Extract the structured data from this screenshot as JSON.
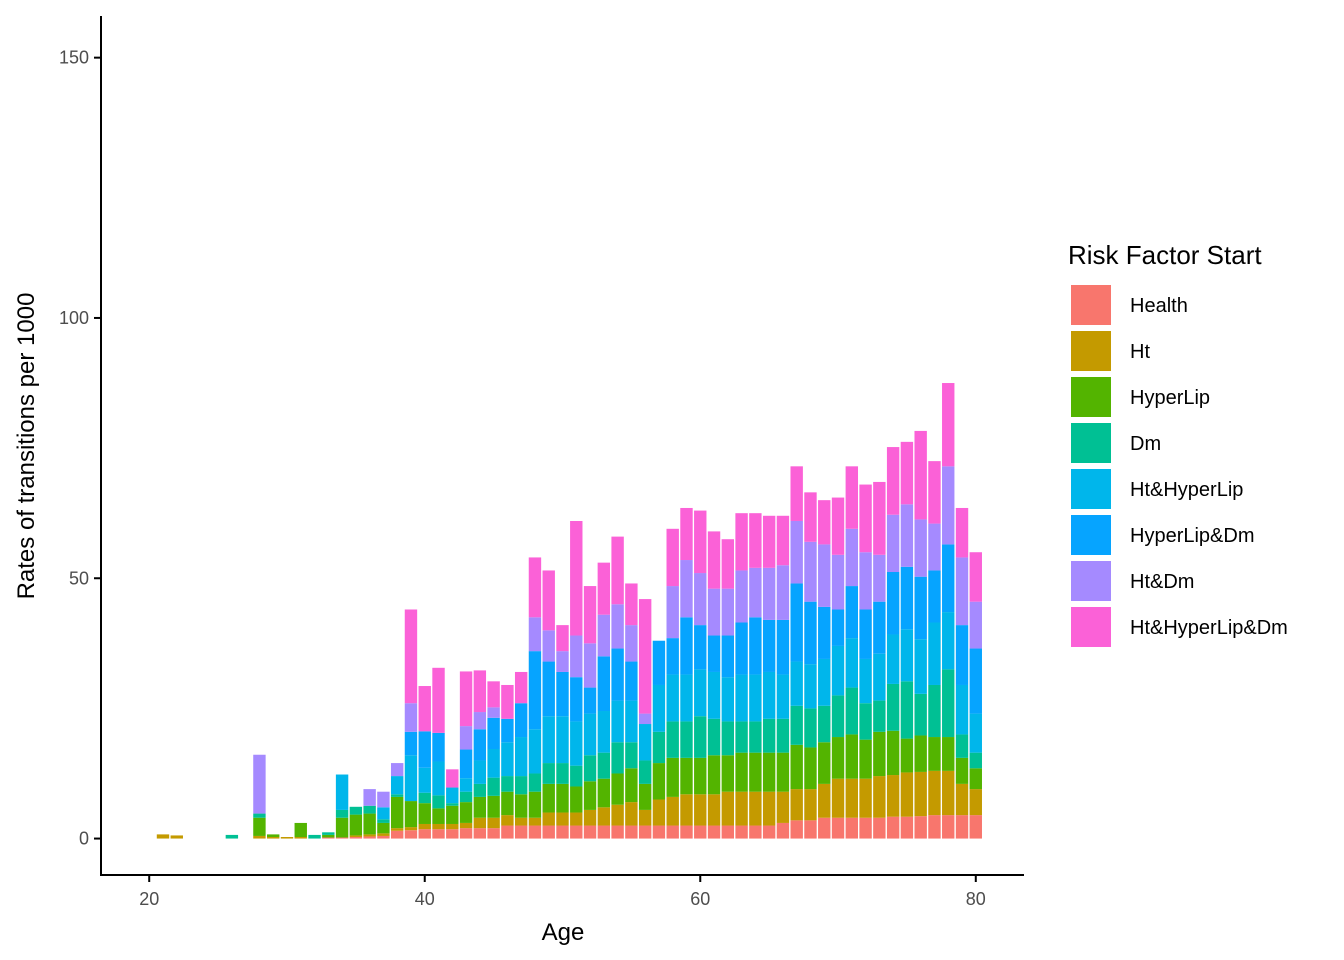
{
  "chart_data": {
    "type": "bar",
    "stacked": true,
    "xlabel": "Age",
    "ylabel": "Rates of transitions per 1000",
    "xlim": [
      16.5,
      83.5
    ],
    "ylim": [
      -7,
      158
    ],
    "xticks": [
      20,
      40,
      60,
      80
    ],
    "yticks": [
      0,
      50,
      100,
      150
    ],
    "grid": false,
    "legend": {
      "title": "Risk Factor Start",
      "position": "right"
    },
    "ages": [
      20,
      21,
      22,
      23,
      24,
      25,
      26,
      27,
      28,
      29,
      30,
      31,
      32,
      33,
      34,
      35,
      36,
      37,
      38,
      39,
      40,
      41,
      42,
      43,
      44,
      45,
      46,
      47,
      48,
      49,
      50,
      51,
      52,
      53,
      54,
      55,
      56,
      57,
      58,
      59,
      60,
      61,
      62,
      63,
      64,
      65,
      66,
      67,
      68,
      69,
      70,
      71,
      72,
      73,
      74,
      75,
      76,
      77,
      78,
      79,
      80
    ],
    "series": [
      {
        "name": "Health",
        "color": "#F8766D",
        "values": [
          0,
          0,
          0,
          0,
          0,
          0,
          0,
          0,
          0,
          0,
          0,
          0,
          0,
          0.2,
          0.2,
          0.3,
          0.4,
          0.5,
          1.5,
          1.6,
          1.8,
          1.8,
          1.8,
          2,
          2,
          2,
          2.5,
          2.5,
          2.5,
          2.5,
          2.5,
          2.5,
          2.5,
          2.5,
          2.5,
          2.5,
          2.5,
          2.5,
          2.5,
          2.5,
          2.5,
          2.5,
          2.5,
          2.5,
          2.5,
          2.5,
          3,
          3.5,
          3.5,
          4,
          4,
          4,
          4,
          4,
          4.2,
          4.2,
          4.3,
          4.5,
          4.5,
          4.5,
          4.5
        ]
      },
      {
        "name": "Ht",
        "color": "#C49A00",
        "values": [
          0,
          0.8,
          0.6,
          0,
          0,
          0,
          0,
          0,
          0.5,
          0.3,
          0.3,
          0.3,
          0,
          0,
          0,
          0.3,
          0.4,
          0.5,
          0.5,
          0.6,
          1,
          1,
          1,
          1,
          2,
          2,
          2,
          1.5,
          1.5,
          2.5,
          2.5,
          2.5,
          3,
          3.5,
          4,
          4.5,
          3,
          5,
          5.5,
          6,
          6,
          6,
          6.5,
          6.5,
          6.5,
          6.5,
          6,
          6,
          6,
          6.5,
          7.5,
          7.5,
          7.5,
          8,
          8,
          8.5,
          8.5,
          8.5,
          8.5,
          6,
          5
        ]
      },
      {
        "name": "HyperLip",
        "color": "#53B400",
        "values": [
          0,
          0,
          0,
          0,
          0,
          0,
          0,
          0,
          3.5,
          0.5,
          0,
          2.7,
          0,
          0.5,
          3.8,
          4,
          4,
          2,
          6,
          5,
          4,
          3,
          3.5,
          4,
          4,
          4.2,
          4.5,
          4.5,
          5,
          5.5,
          5.5,
          5,
          5.5,
          5.5,
          6,
          6.5,
          5,
          7,
          7.5,
          7,
          7,
          7.5,
          7,
          7.5,
          7.5,
          7.5,
          7.5,
          8.5,
          8,
          8,
          8,
          8.5,
          7.5,
          8.5,
          8.5,
          6.5,
          7,
          6.5,
          6.5,
          5,
          4
        ]
      },
      {
        "name": "Dm",
        "color": "#00C094",
        "values": [
          0,
          0,
          0,
          0,
          0,
          0,
          0.7,
          0,
          0.8,
          0,
          0,
          0,
          0.7,
          0.5,
          1.5,
          1.5,
          1.5,
          0.7,
          0.5,
          0,
          2,
          2.5,
          0.5,
          2,
          2.5,
          3.5,
          3,
          3.5,
          3.5,
          4,
          4,
          4,
          5,
          5,
          6,
          5,
          4.5,
          6,
          7,
          7,
          8,
          7,
          6.5,
          6,
          6,
          6.5,
          6.5,
          7.5,
          7.5,
          7,
          8,
          9,
          7,
          6,
          9,
          11,
          8,
          10,
          13,
          4.5,
          3
        ]
      },
      {
        "name": "Ht&HyperLip",
        "color": "#00B6EB",
        "_comment": "placeholder",
        "values": []
      },
      {
        "name": "HyperLip&Dm",
        "color": "#06A4FF",
        "values": []
      },
      {
        "name": "Ht&Dm",
        "color": "#A58AFF",
        "values": []
      },
      {
        "name": "Ht&HyperLip&Dm",
        "color": "#FB61D7",
        "values": []
      }
    ]
  }
}
